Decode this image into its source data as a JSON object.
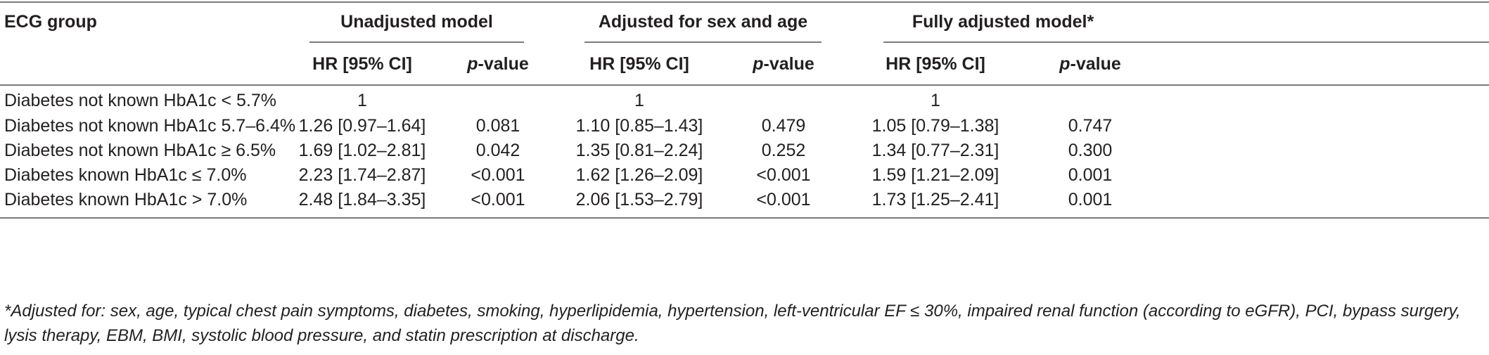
{
  "table": {
    "header": {
      "row_label": "ECG group",
      "groups": [
        {
          "label": "Unadjusted model"
        },
        {
          "label": "Adjusted for sex and age"
        },
        {
          "label": "Fully adjusted model*"
        }
      ],
      "hr_label": "HR [95% CI]",
      "p_italic": "p",
      "p_rest": "-value"
    },
    "rows": [
      {
        "label": "Diabetes not known HbA1c < 5.7%",
        "cells": [
          [
            "1",
            ""
          ],
          [
            "1",
            ""
          ],
          [
            "1",
            ""
          ]
        ]
      },
      {
        "label": "Diabetes not known HbA1c 5.7–6.4%",
        "cells": [
          [
            "1.26 [0.97–1.64]",
            "0.081"
          ],
          [
            "1.10 [0.85–1.43]",
            "0.479"
          ],
          [
            "1.05 [0.79–1.38]",
            "0.747"
          ]
        ]
      },
      {
        "label": "Diabetes not known HbA1c ≥ 6.5%",
        "cells": [
          [
            "1.69 [1.02–2.81]",
            "0.042"
          ],
          [
            "1.35 [0.81–2.24]",
            "0.252"
          ],
          [
            "1.34 [0.77–2.31]",
            "0.300"
          ]
        ]
      },
      {
        "label": "Diabetes known HbA1c ≤ 7.0%",
        "cells": [
          [
            "2.23 [1.74–2.87]",
            "<0.001"
          ],
          [
            "1.62 [1.26–2.09]",
            "<0.001"
          ],
          [
            "1.59 [1.21–2.09]",
            "0.001"
          ]
        ]
      },
      {
        "label": "Diabetes known HbA1c > 7.0%",
        "cells": [
          [
            "2.48 [1.84–3.35]",
            "<0.001"
          ],
          [
            "2.06 [1.53–2.79]",
            "<0.001"
          ],
          [
            "1.73 [1.25–2.41]",
            "0.001"
          ]
        ]
      }
    ],
    "footnote": "*Adjusted for: sex, age, typical chest pain symptoms, diabetes, smoking, hyperlipidemia, hypertension, left-ventricular EF ≤ 30%, impaired renal function (according to eGFR), PCI, bypass surgery, lysis therapy, EBM, BMI, systolic blood pressure, and statin prescription at discharge."
  }
}
